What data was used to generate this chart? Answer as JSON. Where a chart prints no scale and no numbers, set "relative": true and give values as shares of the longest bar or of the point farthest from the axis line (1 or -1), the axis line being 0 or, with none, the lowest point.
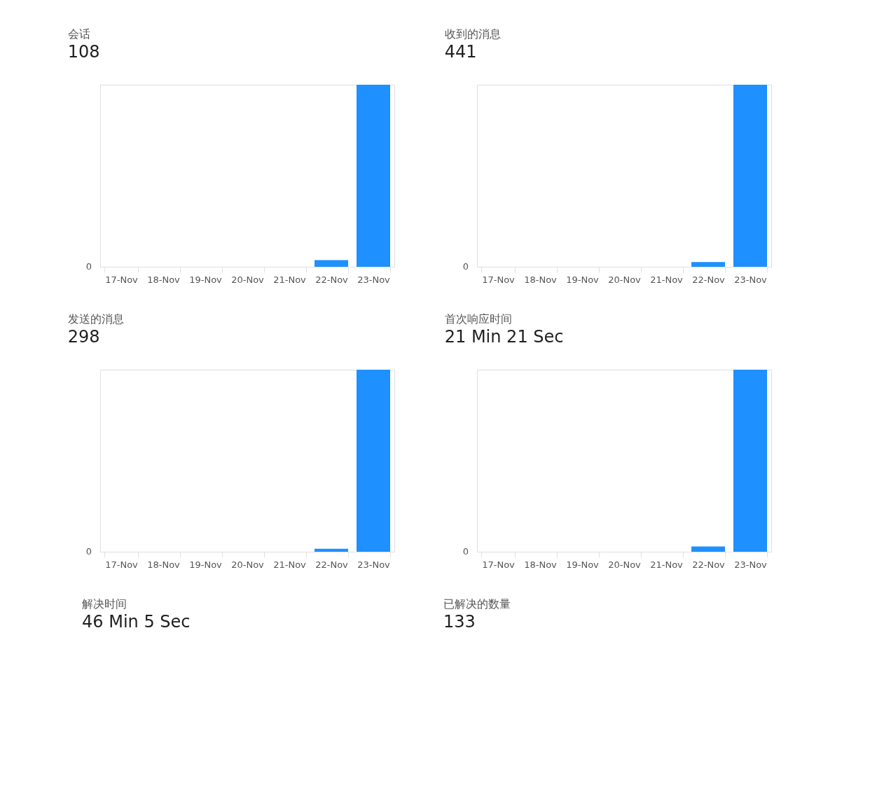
{
  "chart_data": [
    {
      "type": "bar",
      "title": "会话",
      "subtitle": "108",
      "relative": true,
      "categories": [
        "17-Nov",
        "18-Nov",
        "19-Nov",
        "20-Nov",
        "21-Nov",
        "22-Nov",
        "23-Nov"
      ],
      "values": [
        0,
        0,
        0,
        0,
        0,
        0.037,
        1
      ],
      "color": "#1e90ff",
      "annotations": [
        "0"
      ]
    },
    {
      "type": "bar",
      "title": "收到的消息",
      "subtitle": "441",
      "relative": true,
      "categories": [
        "17-Nov",
        "18-Nov",
        "19-Nov",
        "20-Nov",
        "21-Nov",
        "22-Nov",
        "23-Nov"
      ],
      "values": [
        0,
        0,
        0,
        0,
        0,
        0.026,
        1
      ],
      "color": "#1e90ff",
      "annotations": [
        "0"
      ]
    },
    {
      "type": "bar",
      "title": "发送的消息",
      "subtitle": "298",
      "relative": true,
      "categories": [
        "17-Nov",
        "18-Nov",
        "19-Nov",
        "20-Nov",
        "21-Nov",
        "22-Nov",
        "23-Nov"
      ],
      "values": [
        0,
        0,
        0,
        0,
        0,
        0.016,
        1
      ],
      "color": "#1e90ff",
      "annotations": [
        "0"
      ]
    },
    {
      "type": "bar",
      "title": "首次响应时间",
      "subtitle": "21 Min 21 Sec",
      "relative": true,
      "categories": [
        "17-Nov",
        "18-Nov",
        "19-Nov",
        "20-Nov",
        "21-Nov",
        "22-Nov",
        "23-Nov"
      ],
      "values": [
        0,
        0,
        0,
        0,
        0,
        0.029,
        1
      ],
      "color": "#1e90ff",
      "annotations": [
        "0"
      ]
    },
    {
      "type": "other",
      "title": "解决时间",
      "subtitle": "46 Min 5 Sec"
    },
    {
      "type": "other",
      "title": "已解决的数量",
      "subtitle": "133"
    }
  ]
}
